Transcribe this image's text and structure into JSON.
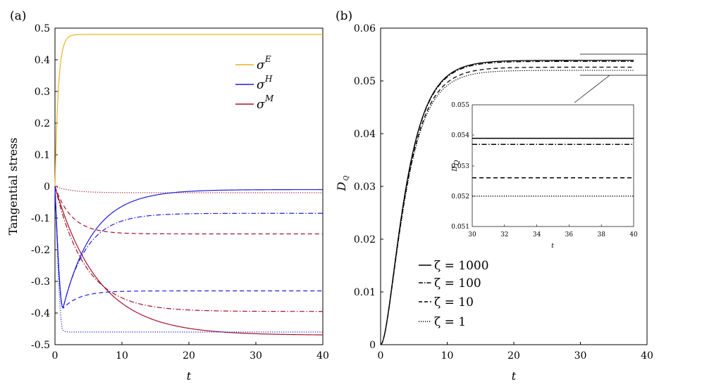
{
  "chart_data": [
    {
      "panel_label": "(a)",
      "type": "line",
      "xlabel": "t",
      "ylabel": "Tangential stress",
      "xlim": [
        0,
        40
      ],
      "ylim": [
        -0.5,
        0.5
      ],
      "xticks": [
        "0",
        "10",
        "20",
        "30",
        "40"
      ],
      "yticks": [
        "0.5",
        "0.4",
        "0.3",
        "0.2",
        "0.1",
        "0",
        "-0.1",
        "-0.2",
        "-0.3",
        "-0.4",
        "-0.5"
      ],
      "legend": [
        {
          "symbol": "σ",
          "superscript": "E",
          "color": "#EDB120"
        },
        {
          "symbol": "σ",
          "superscript": "H",
          "color": "#1F1FD8"
        },
        {
          "symbol": "σ",
          "superscript": "M",
          "color": "#A2142F"
        }
      ],
      "legend_position": "top-right",
      "series": [
        {
          "name": "σE",
          "color": "#EDB120",
          "dash": "solid",
          "start": 0,
          "end": 0.48,
          "tau": 0.5
        },
        {
          "name": "σM ζ=1",
          "color": "#A2142F",
          "dash": "dotted",
          "start": 0,
          "end": -0.02,
          "tau": 2.5
        },
        {
          "name": "σM ζ=10",
          "color": "#A2142F",
          "dash": "dashed",
          "start": 0,
          "end": -0.15,
          "tau": 2.5
        },
        {
          "name": "σM ζ=100",
          "color": "#A2142F",
          "dash": "dashdot",
          "start": 0,
          "end": -0.395,
          "tau": 4.5
        },
        {
          "name": "σM ζ=1000",
          "color": "#A2142F",
          "dash": "solid",
          "start": 0,
          "end": -0.47,
          "tau": 6.5
        },
        {
          "name": "σH ζ=1",
          "color": "#1F1FD8",
          "dash": "dotted",
          "start": 0,
          "dip": -0.455,
          "dip_t": 1.2,
          "end": -0.46,
          "tau": 0.3
        },
        {
          "name": "σH ζ=10",
          "color": "#1F1FD8",
          "dash": "dashed",
          "start": 0,
          "dip": -0.385,
          "dip_t": 1.2,
          "end": -0.33,
          "tau": 2.5
        },
        {
          "name": "σH ζ=100",
          "color": "#1F1FD8",
          "dash": "dashdot",
          "start": 0,
          "dip": -0.385,
          "dip_t": 1.2,
          "end": -0.085,
          "tau": 3.5
        },
        {
          "name": "σH ζ=1000",
          "color": "#1F1FD8",
          "dash": "solid",
          "start": 0,
          "dip": -0.385,
          "dip_t": 1.2,
          "end": -0.01,
          "tau": 4.5
        }
      ]
    },
    {
      "panel_label": "(b)",
      "type": "line",
      "xlabel": "t",
      "ylabel": "D",
      "ylabel_sub": "Q",
      "xlim": [
        0,
        40
      ],
      "ylim": [
        0,
        0.06
      ],
      "xticks": [
        "0",
        "10",
        "20",
        "30",
        "40"
      ],
      "yticks": [
        "0.06",
        "0.05",
        "0.04",
        "0.03",
        "0.02",
        "0.01",
        "0"
      ],
      "legend_position": "bottom-left",
      "series": [
        {
          "name": "ζ = 1000",
          "dash": "solid",
          "end": 0.0539,
          "tau": 2.8
        },
        {
          "name": "ζ = 100",
          "dash": "dashdot",
          "end": 0.0537,
          "tau": 2.8
        },
        {
          "name": "ζ = 10",
          "dash": "dashed",
          "end": 0.0526,
          "tau": 2.8
        },
        {
          "name": "ζ = 1",
          "dash": "dotted",
          "end": 0.052,
          "tau": 2.8
        }
      ],
      "inset": {
        "xlim": [
          30,
          40
        ],
        "ylim": [
          0.051,
          0.055
        ],
        "xlabel": "t",
        "ylabel": "D",
        "ylabel_sub": "Q",
        "xticks": [
          "30",
          "32",
          "34",
          "36",
          "38",
          "40"
        ],
        "yticks": [
          "0.055",
          "0.054",
          "0.053",
          "0.052",
          "0.051"
        ]
      }
    }
  ]
}
